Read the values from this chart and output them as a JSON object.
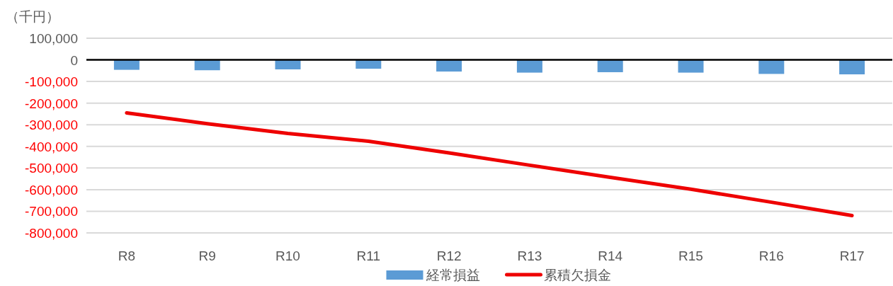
{
  "chart_data": {
    "type": "bar",
    "ylabel": "（千円）",
    "categories": [
      "R8",
      "R9",
      "R10",
      "R11",
      "R12",
      "R13",
      "R14",
      "R15",
      "R16",
      "R17"
    ],
    "series": [
      {
        "name": "経常損益",
        "color": "#5b9bd5",
        "values": [
          -46000,
          -48000,
          -44000,
          -41000,
          -54000,
          -59000,
          -57000,
          -59000,
          -65000,
          -67000
        ]
      },
      {
        "name": "累積欠損金",
        "type": "line",
        "color": "#ee0000",
        "values": [
          -245000,
          -295000,
          -340000,
          -376000,
          -430000,
          -487000,
          -543000,
          -598000,
          -658000,
          -720000
        ]
      }
    ],
    "ylim": [
      -800000,
      100000
    ],
    "yticks": [
      {
        "value": 100000,
        "label": "100,000"
      },
      0,
      {
        "value": -100000,
        "label": "-100,000"
      },
      {
        "value": -200000,
        "label": "-200,000"
      },
      {
        "value": -300000,
        "label": "-300,000"
      },
      {
        "value": -400000,
        "label": "-400,000"
      },
      {
        "value": -500000,
        "label": "-500,000"
      },
      {
        "value": -600000,
        "label": "-600,000"
      },
      {
        "value": -700000,
        "label": "-700,000"
      },
      {
        "value": -800000,
        "label": "-800,000"
      }
    ],
    "grid": "y",
    "legend": "bottom",
    "marker": "none",
    "line_style": "solid"
  }
}
